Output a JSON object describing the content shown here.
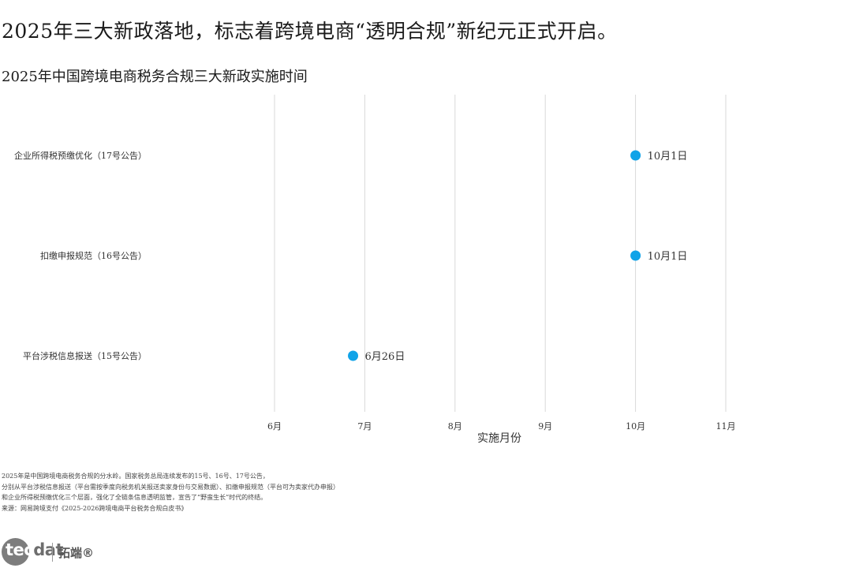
{
  "headline": "2025年三大新政落地，标志着跨境电商“透明合规”新纪元正式开启。",
  "chart_data": {
    "type": "scatter",
    "title": "2025年中国跨境电商税务合规三大新政实施时间",
    "xlabel": "实施月份",
    "x_ticks": [
      {
        "value": 6,
        "label": "6月"
      },
      {
        "value": 7,
        "label": "7月"
      },
      {
        "value": 8,
        "label": "8月"
      },
      {
        "value": 9,
        "label": "9月"
      },
      {
        "value": 10,
        "label": "10月"
      },
      {
        "value": 11,
        "label": "11月"
      }
    ],
    "xlim": [
      6,
      11
    ],
    "grid": true,
    "point_color": "#10a3e8",
    "points": [
      {
        "category": "企业所得税预缴优化（17号公告）",
        "x": 10.0,
        "label": "10月1日"
      },
      {
        "category": "扣缴申报规范（16号公告）",
        "x": 10.0,
        "label": "10月1日"
      },
      {
        "category": "平台涉税信息报送（15号公告）",
        "x": 6.87,
        "label": "6月26日"
      }
    ]
  },
  "notes": [
    "2025年是中国跨境电商税务合规的分水岭。国家税务总局连续发布的15号、16号、17号公告，",
    "分别从平台涉税信息报送（平台需按季度向税务机关报送卖家身份与交易数据）、扣缴申报规范（平台可为卖家代办申报）",
    "和企业所得税预缴优化三个层面，强化了全链条信息透明监管，宣告了“野蛮生长”时代的终结。",
    "来源：网易跨境支付《2025-2026跨境电商平台税务合规白皮书》"
  ],
  "logo": {
    "word_first": "tec",
    "word_rest": "dat",
    "cn": "拓端®"
  }
}
